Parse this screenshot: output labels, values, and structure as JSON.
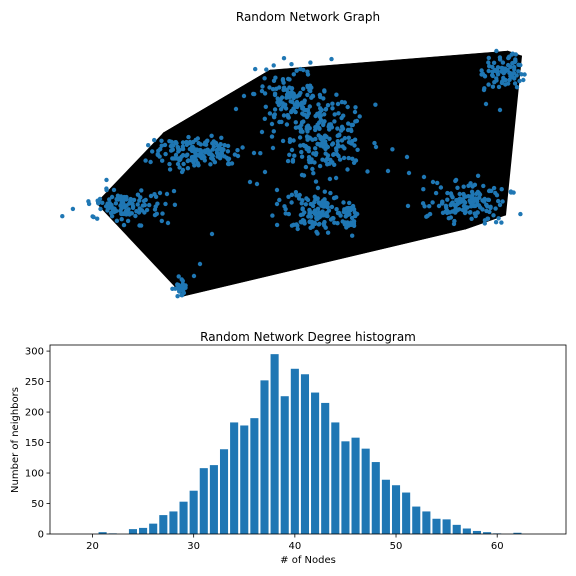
{
  "chart_data": [
    {
      "type": "network",
      "title": "Random Network Graph",
      "node_color": "#1f77b4",
      "edge_color": "#000000"
    },
    {
      "type": "bar",
      "title": "Random Network Degree histogram",
      "xlabel": "# of Nodes",
      "ylabel": "Number of neighbors",
      "bar_color": "#1f77b4",
      "xlim": [
        15.8,
        66.8
      ],
      "ylim": [
        0,
        310
      ],
      "xticks": [
        20,
        30,
        40,
        50,
        60
      ],
      "yticks": [
        0,
        50,
        100,
        150,
        200,
        250,
        300
      ],
      "x": [
        20,
        21,
        22,
        23,
        24,
        25,
        26,
        27,
        28,
        29,
        30,
        31,
        32,
        33,
        34,
        35,
        36,
        37,
        38,
        39,
        40,
        41,
        42,
        43,
        44,
        45,
        46,
        47,
        48,
        49,
        50,
        51,
        52,
        53,
        54,
        55,
        56,
        57,
        58,
        59,
        60,
        61,
        62,
        63
      ],
      "values": [
        0,
        3,
        1,
        0,
        8,
        10,
        17,
        31,
        37,
        53,
        71,
        108,
        113,
        139,
        183,
        178,
        190,
        252,
        295,
        226,
        271,
        262,
        232,
        215,
        183,
        152,
        158,
        140,
        118,
        89,
        80,
        68,
        45,
        37,
        25,
        24,
        15,
        9,
        5,
        3,
        1,
        0,
        2,
        0
      ]
    }
  ]
}
